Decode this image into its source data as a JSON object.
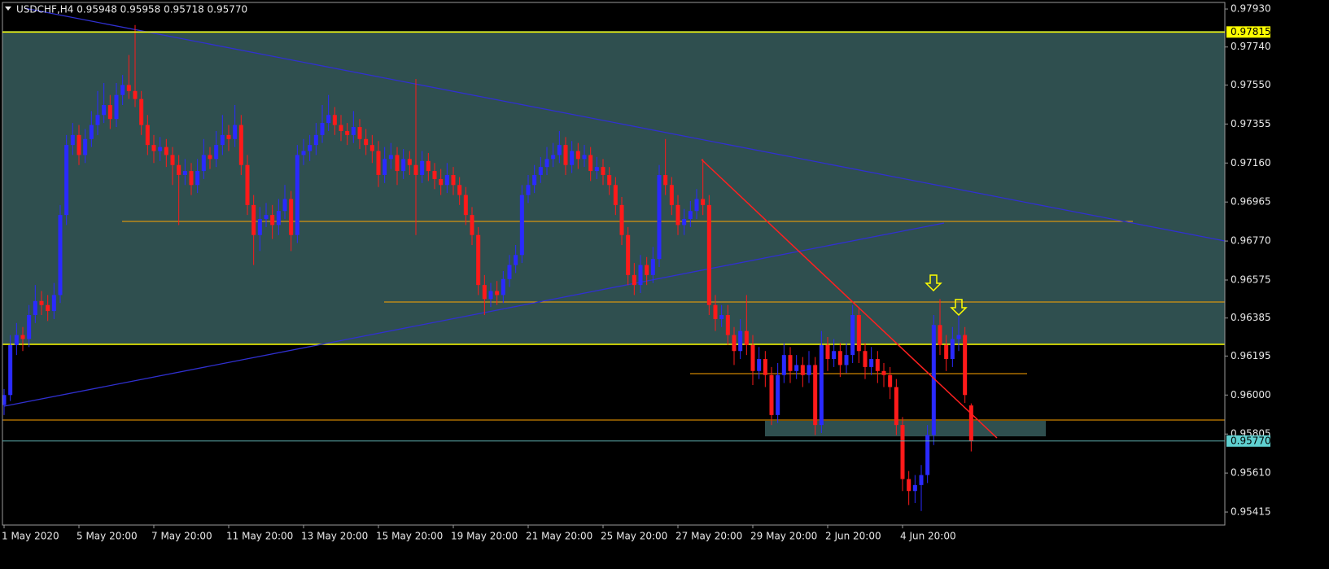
{
  "chart_data": {
    "type": "candlestick",
    "header": "USDCHF,H4  0.95948 0.95958 0.95718 0.95770",
    "last_price_label": "0.95770",
    "level": 0.97815,
    "ylim": [
      0.9535,
      0.97975
    ],
    "yticks": [
      {
        "value": 0.9793,
        "label": "0.97930"
      },
      {
        "value": 0.9774,
        "label": "0.97740"
      },
      {
        "value": 0.9755,
        "label": "0.97550"
      },
      0.97355,
      {
        "value": 0.9716,
        "label": "0.97160"
      },
      0.96965,
      {
        "value": 0.9677,
        "label": "0.96770"
      },
      0.96575,
      0.96385,
      0.96195,
      {
        "value": 0.96,
        "label": "0.96000"
      },
      0.95805,
      {
        "value": 0.9561,
        "label": "0.95610"
      },
      0.95415
    ],
    "up_color": "#2a2aff",
    "down_color": "#ff1a1a",
    "categories": [
      "1 May 2020",
      null,
      null,
      null,
      null,
      null,
      null,
      null,
      null,
      null,
      null,
      null,
      "5 May 20:00",
      null,
      null,
      null,
      null,
      null,
      null,
      null,
      null,
      null,
      null,
      null,
      "7 May 20:00",
      null,
      null,
      null,
      null,
      null,
      null,
      null,
      null,
      null,
      null,
      null,
      "11 May 20:00",
      null,
      null,
      null,
      null,
      null,
      null,
      null,
      null,
      null,
      null,
      null,
      "13 May 20:00",
      null,
      null,
      null,
      null,
      null,
      null,
      null,
      null,
      null,
      null,
      null,
      "15 May 20:00",
      null,
      null,
      null,
      null,
      null,
      null,
      null,
      null,
      null,
      null,
      null,
      "19 May 20:00",
      null,
      null,
      null,
      null,
      null,
      null,
      null,
      null,
      null,
      null,
      null,
      "21 May 20:00",
      null,
      null,
      null,
      null,
      null,
      null,
      null,
      null,
      null,
      null,
      null,
      "25 May 20:00",
      null,
      null,
      null,
      null,
      null,
      null,
      null,
      null,
      null,
      null,
      null,
      "27 May 20:00",
      null,
      null,
      null,
      null,
      null,
      null,
      null,
      null,
      null,
      null,
      null,
      "29 May 20:00",
      null,
      null,
      null,
      null,
      null,
      null,
      null,
      null,
      null,
      null,
      null,
      "2 Jun 20:00",
      null,
      null,
      null,
      null,
      null,
      null,
      null,
      null,
      null,
      null,
      null,
      "4 Jun 20:00",
      null,
      null,
      null,
      null,
      null,
      null,
      null,
      null,
      null,
      null,
      null
    ],
    "candles": [
      [
        0.9595,
        0.9603,
        0.959,
        0.96
      ],
      [
        0.96,
        0.963,
        0.9597,
        0.9625
      ],
      [
        0.9625,
        0.9636,
        0.962,
        0.963
      ],
      [
        0.963,
        0.9634,
        0.9622,
        0.9628
      ],
      [
        0.9628,
        0.9645,
        0.9624,
        0.964
      ],
      [
        0.964,
        0.9655,
        0.9636,
        0.9647
      ],
      [
        0.9647,
        0.9652,
        0.964,
        0.9645
      ],
      [
        0.9645,
        0.965,
        0.9637,
        0.9642
      ],
      [
        0.9642,
        0.9656,
        0.9638,
        0.965
      ],
      [
        0.965,
        0.9695,
        0.9646,
        0.969
      ],
      [
        0.969,
        0.973,
        0.9685,
        0.9725
      ],
      [
        0.9725,
        0.9736,
        0.972,
        0.973
      ],
      [
        0.973,
        0.9735,
        0.9715,
        0.972
      ],
      [
        0.972,
        0.9733,
        0.9716,
        0.9728
      ],
      [
        0.9728,
        0.9742,
        0.9724,
        0.9735
      ],
      [
        0.9735,
        0.9752,
        0.973,
        0.974
      ],
      [
        0.974,
        0.9756,
        0.9736,
        0.9745
      ],
      [
        0.9745,
        0.975,
        0.9733,
        0.9738
      ],
      [
        0.9738,
        0.9756,
        0.9734,
        0.975
      ],
      [
        0.975,
        0.976,
        0.9745,
        0.9755
      ],
      [
        0.9755,
        0.977,
        0.9748,
        0.9752
      ],
      [
        0.9752,
        0.9785,
        0.9744,
        0.9748
      ],
      [
        0.9748,
        0.9752,
        0.973,
        0.9735
      ],
      [
        0.9735,
        0.974,
        0.972,
        0.9725
      ],
      [
        0.9725,
        0.973,
        0.9716,
        0.9722
      ],
      [
        0.9722,
        0.9729,
        0.9717,
        0.9724
      ],
      [
        0.9724,
        0.9728,
        0.9714,
        0.972
      ],
      [
        0.972,
        0.9724,
        0.9705,
        0.9715
      ],
      [
        0.9715,
        0.972,
        0.9685,
        0.971
      ],
      [
        0.971,
        0.9718,
        0.9705,
        0.9712
      ],
      [
        0.9712,
        0.9716,
        0.97,
        0.9705
      ],
      [
        0.9705,
        0.9718,
        0.9701,
        0.9712
      ],
      [
        0.9712,
        0.9728,
        0.9708,
        0.972
      ],
      [
        0.972,
        0.9724,
        0.9713,
        0.9718
      ],
      [
        0.9718,
        0.9732,
        0.9714,
        0.9725
      ],
      [
        0.9725,
        0.974,
        0.972,
        0.973
      ],
      [
        0.973,
        0.9735,
        0.9722,
        0.9728
      ],
      [
        0.9728,
        0.9745,
        0.9724,
        0.9735
      ],
      [
        0.9735,
        0.974,
        0.971,
        0.9715
      ],
      [
        0.9715,
        0.972,
        0.969,
        0.9695
      ],
      [
        0.9695,
        0.97,
        0.9665,
        0.968
      ],
      [
        0.968,
        0.9694,
        0.9672,
        0.9688
      ],
      [
        0.9688,
        0.9696,
        0.9684,
        0.969
      ],
      [
        0.969,
        0.9695,
        0.9678,
        0.9685
      ],
      [
        0.9685,
        0.9698,
        0.968,
        0.9692
      ],
      [
        0.9692,
        0.9705,
        0.9688,
        0.9698
      ],
      [
        0.9698,
        0.9702,
        0.9672,
        0.968
      ],
      [
        0.968,
        0.9725,
        0.9676,
        0.972
      ],
      [
        0.972,
        0.9728,
        0.9715,
        0.9722
      ],
      [
        0.9722,
        0.973,
        0.9717,
        0.9725
      ],
      [
        0.9725,
        0.9736,
        0.972,
        0.973
      ],
      [
        0.973,
        0.9745,
        0.9726,
        0.9736
      ],
      [
        0.9736,
        0.975,
        0.9732,
        0.974
      ],
      [
        0.974,
        0.9744,
        0.973,
        0.9735
      ],
      [
        0.9735,
        0.974,
        0.9727,
        0.9732
      ],
      [
        0.9732,
        0.9736,
        0.9725,
        0.973
      ],
      [
        0.973,
        0.9742,
        0.9726,
        0.9734
      ],
      [
        0.9734,
        0.9738,
        0.9723,
        0.9728
      ],
      [
        0.9728,
        0.9733,
        0.972,
        0.9725
      ],
      [
        0.9725,
        0.973,
        0.9716,
        0.9722
      ],
      [
        0.9722,
        0.9727,
        0.9704,
        0.971
      ],
      [
        0.971,
        0.9724,
        0.9706,
        0.9718
      ],
      [
        0.9718,
        0.9726,
        0.9713,
        0.972
      ],
      [
        0.972,
        0.9724,
        0.9705,
        0.9712
      ],
      [
        0.9712,
        0.9723,
        0.9708,
        0.9718
      ],
      [
        0.9718,
        0.9722,
        0.971,
        0.9715
      ],
      [
        0.9715,
        0.9758,
        0.968,
        0.971
      ],
      [
        0.971,
        0.9722,
        0.9706,
        0.9717
      ],
      [
        0.9717,
        0.9721,
        0.9707,
        0.9712
      ],
      [
        0.9712,
        0.9716,
        0.9703,
        0.9708
      ],
      [
        0.9708,
        0.9713,
        0.97,
        0.9705
      ],
      [
        0.9705,
        0.9716,
        0.9701,
        0.971
      ],
      [
        0.971,
        0.9714,
        0.97,
        0.9705
      ],
      [
        0.9705,
        0.9709,
        0.9695,
        0.97
      ],
      [
        0.97,
        0.9704,
        0.9685,
        0.969
      ],
      [
        0.969,
        0.9694,
        0.9675,
        0.968
      ],
      [
        0.968,
        0.9684,
        0.965,
        0.9655
      ],
      [
        0.9655,
        0.966,
        0.964,
        0.9648
      ],
      [
        0.9648,
        0.9656,
        0.9644,
        0.9652
      ],
      [
        0.9652,
        0.9657,
        0.9645,
        0.965
      ],
      [
        0.965,
        0.9662,
        0.9646,
        0.9658
      ],
      [
        0.9658,
        0.967,
        0.9654,
        0.9665
      ],
      [
        0.9665,
        0.9675,
        0.9661,
        0.967
      ],
      [
        0.967,
        0.9705,
        0.9666,
        0.97
      ],
      [
        0.97,
        0.971,
        0.9696,
        0.9705
      ],
      [
        0.9705,
        0.9715,
        0.9701,
        0.971
      ],
      [
        0.971,
        0.9719,
        0.9706,
        0.9714
      ],
      [
        0.9714,
        0.9724,
        0.971,
        0.9718
      ],
      [
        0.9718,
        0.9726,
        0.9714,
        0.972
      ],
      [
        0.972,
        0.9732,
        0.9716,
        0.9725
      ],
      [
        0.9725,
        0.9729,
        0.971,
        0.9715
      ],
      [
        0.9715,
        0.9727,
        0.9711,
        0.9722
      ],
      [
        0.9722,
        0.9726,
        0.9713,
        0.9718
      ],
      [
        0.9718,
        0.9725,
        0.9714,
        0.972
      ],
      [
        0.972,
        0.9724,
        0.9707,
        0.9712
      ],
      [
        0.9712,
        0.9719,
        0.9708,
        0.9714
      ],
      [
        0.9714,
        0.9718,
        0.9705,
        0.971
      ],
      [
        0.971,
        0.9714,
        0.97,
        0.9705
      ],
      [
        0.9705,
        0.9709,
        0.969,
        0.9695
      ],
      [
        0.9695,
        0.9699,
        0.9675,
        0.968
      ],
      [
        0.968,
        0.9684,
        0.9655,
        0.966
      ],
      [
        0.966,
        0.9666,
        0.965,
        0.9655
      ],
      [
        0.9655,
        0.967,
        0.9651,
        0.9665
      ],
      [
        0.9665,
        0.9669,
        0.9655,
        0.966
      ],
      [
        0.966,
        0.9674,
        0.9656,
        0.9668
      ],
      [
        0.9668,
        0.9715,
        0.9664,
        0.971
      ],
      [
        0.971,
        0.9728,
        0.97,
        0.9705
      ],
      [
        0.9705,
        0.9709,
        0.969,
        0.9695
      ],
      [
        0.9695,
        0.97,
        0.968,
        0.9685
      ],
      [
        0.9685,
        0.9693,
        0.968,
        0.9688
      ],
      [
        0.9688,
        0.9697,
        0.9684,
        0.9692
      ],
      [
        0.9692,
        0.9703,
        0.9688,
        0.9698
      ],
      [
        0.9698,
        0.9718,
        0.969,
        0.9695
      ],
      [
        0.9695,
        0.97,
        0.964,
        0.9645
      ],
      [
        0.9645,
        0.965,
        0.9632,
        0.9638
      ],
      [
        0.9638,
        0.9645,
        0.9634,
        0.964
      ],
      [
        0.964,
        0.9645,
        0.9625,
        0.963
      ],
      [
        0.963,
        0.9634,
        0.9615,
        0.9622
      ],
      [
        0.9622,
        0.9638,
        0.9618,
        0.9632
      ],
      [
        0.9632,
        0.965,
        0.962,
        0.9625
      ],
      [
        0.9625,
        0.963,
        0.9605,
        0.9612
      ],
      [
        0.9612,
        0.9624,
        0.9608,
        0.9618
      ],
      [
        0.9618,
        0.9622,
        0.9604,
        0.961
      ],
      [
        0.961,
        0.9614,
        0.9585,
        0.959
      ],
      [
        0.959,
        0.9616,
        0.9586,
        0.961
      ],
      [
        0.961,
        0.9626,
        0.9606,
        0.962
      ],
      [
        0.962,
        0.9624,
        0.9606,
        0.9612
      ],
      [
        0.9612,
        0.962,
        0.9608,
        0.9615
      ],
      [
        0.9615,
        0.9619,
        0.9604,
        0.961
      ],
      [
        0.961,
        0.9622,
        0.9606,
        0.9615
      ],
      [
        0.9615,
        0.9619,
        0.958,
        0.9585
      ],
      [
        0.9585,
        0.9632,
        0.9581,
        0.9625
      ],
      [
        0.9625,
        0.9629,
        0.9612,
        0.9618
      ],
      [
        0.9618,
        0.9628,
        0.9614,
        0.9622
      ],
      [
        0.9622,
        0.9626,
        0.9609,
        0.9615
      ],
      [
        0.9615,
        0.9626,
        0.9611,
        0.962
      ],
      [
        0.962,
        0.9645,
        0.9616,
        0.964
      ],
      [
        0.964,
        0.9644,
        0.9616,
        0.9622
      ],
      [
        0.9622,
        0.9626,
        0.9608,
        0.9614
      ],
      [
        0.9614,
        0.9624,
        0.961,
        0.9618
      ],
      [
        0.9618,
        0.9622,
        0.9606,
        0.9612
      ],
      [
        0.9612,
        0.9616,
        0.9604,
        0.961
      ],
      [
        0.961,
        0.9614,
        0.9598,
        0.9604
      ],
      [
        0.9604,
        0.9608,
        0.958,
        0.9585
      ],
      [
        0.9585,
        0.9589,
        0.9552,
        0.9558
      ],
      [
        0.9558,
        0.9562,
        0.9545,
        0.9552
      ],
      [
        0.9552,
        0.956,
        0.9546,
        0.9555
      ],
      [
        0.9555,
        0.9565,
        0.9542,
        0.956
      ],
      [
        0.956,
        0.9585,
        0.9556,
        0.958
      ],
      [
        0.958,
        0.964,
        0.9575,
        0.9635
      ],
      [
        0.9635,
        0.9648,
        0.962,
        0.9625
      ],
      [
        0.9625,
        0.963,
        0.9612,
        0.9618
      ],
      [
        0.9618,
        0.9634,
        0.9614,
        0.9628
      ],
      [
        0.9628,
        0.964,
        0.9622,
        0.963
      ],
      [
        0.963,
        0.9634,
        0.9596,
        0.96
      ],
      [
        0.95948,
        0.95958,
        0.95718,
        0.9577
      ]
    ]
  }
}
